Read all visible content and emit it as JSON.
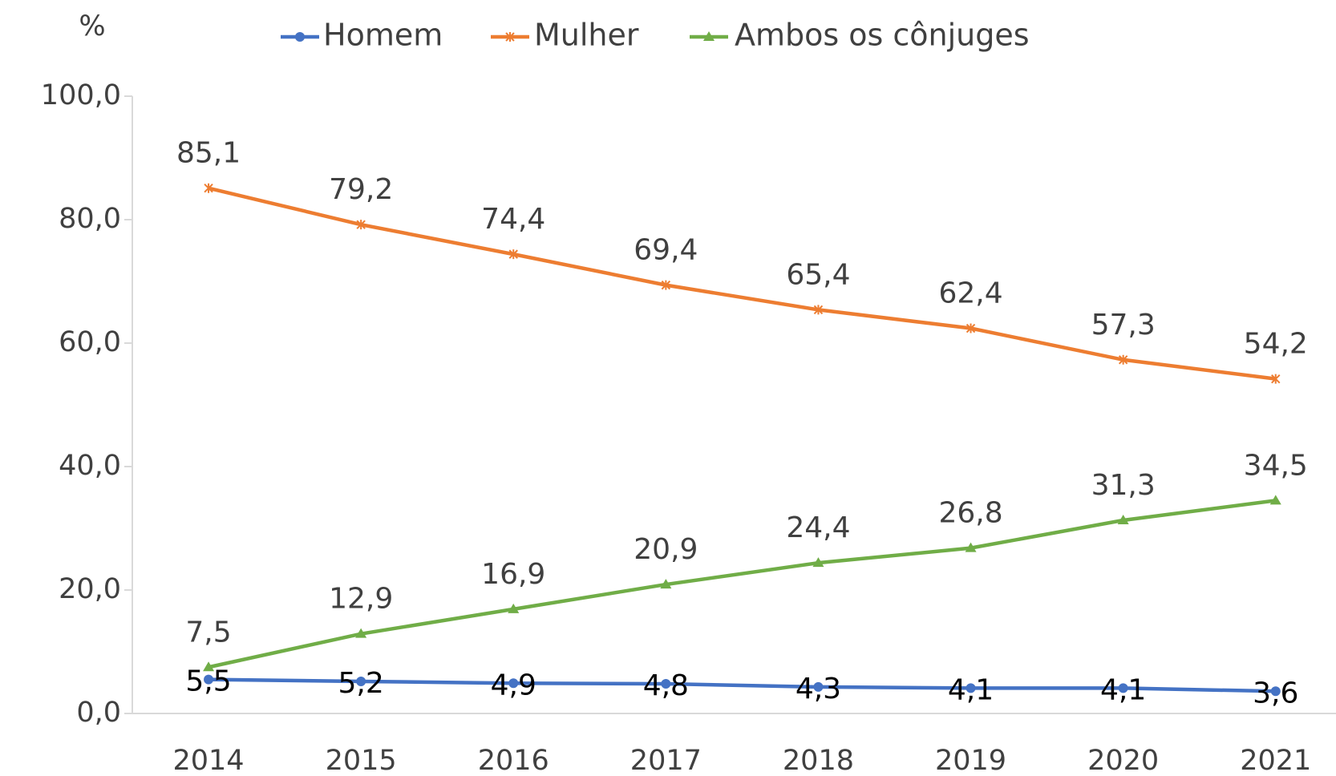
{
  "chart_data": {
    "type": "line",
    "y_label": "%",
    "categories": [
      "2014",
      "2015",
      "2016",
      "2017",
      "2018",
      "2019",
      "2020",
      "2021"
    ],
    "series": [
      {
        "name": "Homem",
        "color": "#4472c4",
        "marker": "circle",
        "values": [
          5.5,
          5.2,
          4.9,
          4.8,
          4.3,
          4.1,
          4.1,
          3.6
        ],
        "value_labels": [
          "5,5",
          "5,2",
          "4,9",
          "4,8",
          "4,3",
          "4,1",
          "4,1",
          "3,6"
        ]
      },
      {
        "name": "Mulher",
        "color": "#ed7d31",
        "marker": "star",
        "values": [
          85.1,
          79.2,
          74.4,
          69.4,
          65.4,
          62.4,
          57.3,
          54.2
        ],
        "value_labels": [
          "85,1",
          "79,2",
          "74,4",
          "69,4",
          "65,4",
          "62,4",
          "57,3",
          "54,2"
        ]
      },
      {
        "name": "Ambos os cônjuges",
        "color": "#70ad47",
        "marker": "triangle",
        "values": [
          7.5,
          12.9,
          16.9,
          20.9,
          24.4,
          26.8,
          31.3,
          34.5
        ],
        "value_labels": [
          "7,5",
          "12,9",
          "16,9",
          "20,9",
          "24,4",
          "26,8",
          "31,3",
          "34,5"
        ]
      }
    ],
    "ylim": [
      0,
      100
    ],
    "yticks": [
      {
        "value": 0,
        "label": "0,0"
      },
      {
        "value": 20,
        "label": "20,0"
      },
      {
        "value": 40,
        "label": "40,0"
      },
      {
        "value": 60,
        "label": "60,0"
      },
      {
        "value": 80,
        "label": "80,0"
      },
      {
        "value": 100,
        "label": "100,0"
      }
    ],
    "legend": "top"
  }
}
